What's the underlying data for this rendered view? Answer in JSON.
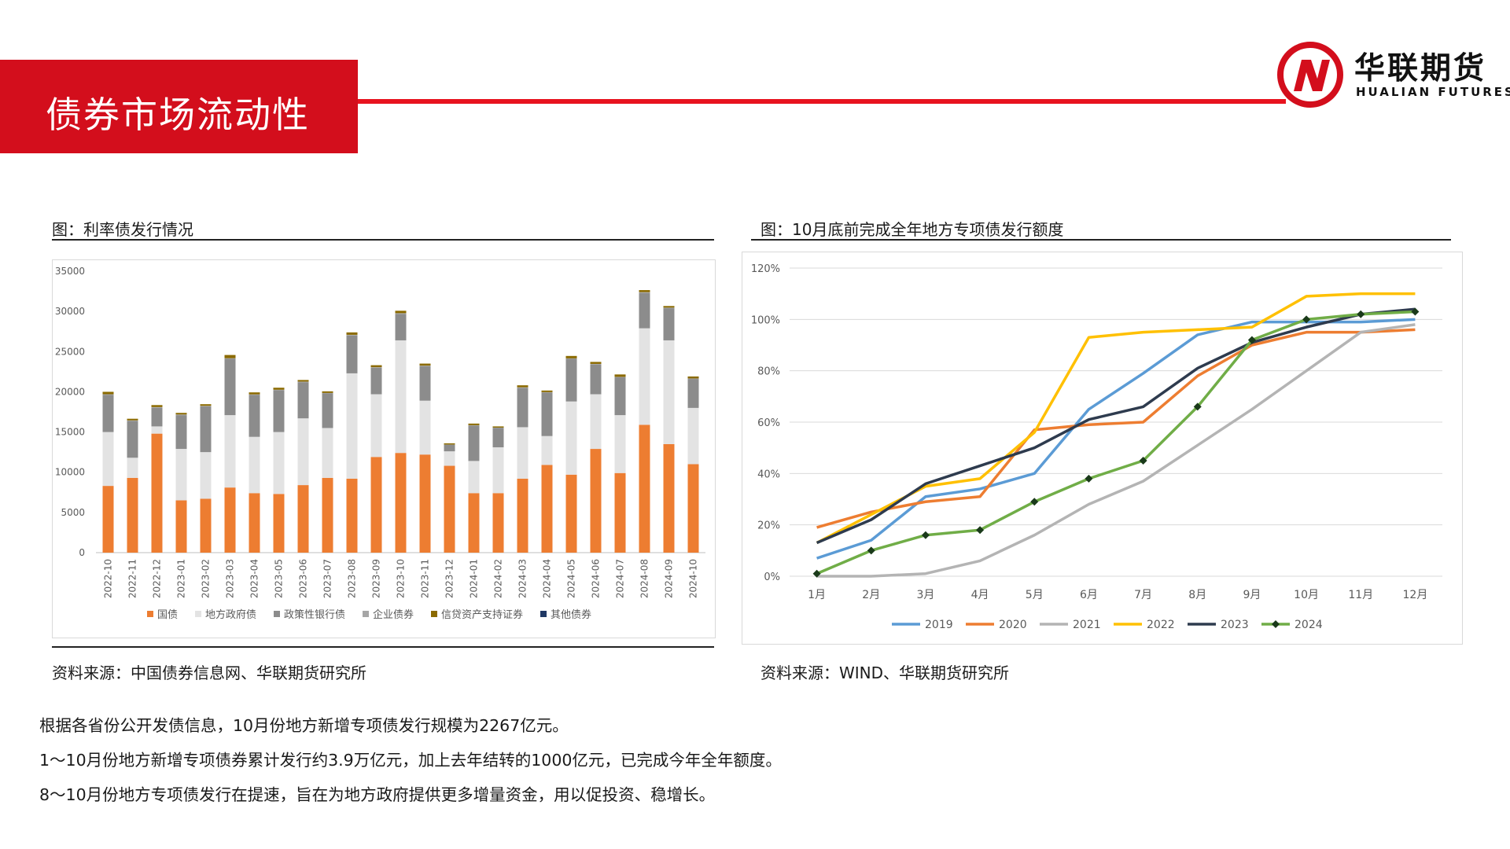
{
  "header": {
    "title": "债券市场流动性",
    "logo_cn": "华联期货",
    "logo_en": "HUALIAN FUTURES"
  },
  "colors": {
    "brand_red": "#d30e1c",
    "rule_red": "#e8131f"
  },
  "left_figure": {
    "caption": "图：利率债发行情况",
    "source": "资料来源：中国债券信息网、华联期货研究所"
  },
  "right_figure": {
    "caption": "图：10月底前完成全年地方专项债发行额度",
    "source": "资料来源：WIND、华联期货研究所"
  },
  "notes": [
    "根据各省份公开发债信息，10月份地方新增专项债发行规模为2267亿元。",
    "1～10月份地方新增专项债券累计发行约3.9万亿元，加上去年结转的1000亿元，已完成今年全年额度。",
    "8～10月份地方专项债发行在提速，旨在为地方政府提供更多增量资金，用以促投资、稳增长。"
  ],
  "chart_data": [
    {
      "type": "bar",
      "stacked": true,
      "title": "",
      "ylim": [
        0,
        35000
      ],
      "yticks": [
        0,
        5000,
        10000,
        15000,
        20000,
        25000,
        30000,
        35000
      ],
      "grid": false,
      "legend_position": "bottom",
      "categories": [
        "2022-10",
        "2022-11",
        "2022-12",
        "2023-01",
        "2023-02",
        "2023-03",
        "2023-04",
        "2023-05",
        "2023-06",
        "2023-07",
        "2023-08",
        "2023-09",
        "2023-10",
        "2023-11",
        "2023-12",
        "2024-01",
        "2024-02",
        "2024-03",
        "2024-04",
        "2024-05",
        "2024-06",
        "2024-07",
        "2024-08",
        "2024-09",
        "2024-10"
      ],
      "series": [
        {
          "name": "国债",
          "color": "#ed7d31",
          "values": [
            8300,
            9300,
            14800,
            6500,
            6700,
            8100,
            7400,
            7300,
            8400,
            9300,
            9200,
            11900,
            12400,
            12200,
            10800,
            7400,
            7400,
            9200,
            10900,
            9700,
            12900,
            9900,
            15900,
            13500,
            11000
          ]
        },
        {
          "name": "地方政府债",
          "color": "#e3e3e3",
          "values": [
            6700,
            2500,
            900,
            6400,
            5800,
            9000,
            7000,
            7700,
            8300,
            6200,
            13100,
            7800,
            14000,
            6700,
            1800,
            4000,
            5700,
            6400,
            3600,
            9100,
            6800,
            7200,
            12000,
            12900,
            7000
          ]
        },
        {
          "name": "政策性银行债",
          "color": "#8c8c8c",
          "values": [
            4600,
            4600,
            2300,
            4200,
            5700,
            7000,
            5200,
            5200,
            4500,
            4300,
            4700,
            3300,
            3300,
            4300,
            800,
            4400,
            2400,
            4900,
            5400,
            5300,
            3700,
            4700,
            4400,
            4000,
            3600
          ]
        },
        {
          "name": "企业债券",
          "color": "#a6a6a6",
          "values": [
            100,
            50,
            100,
            80,
            60,
            80,
            80,
            60,
            70,
            60,
            90,
            60,
            80,
            60,
            40,
            50,
            50,
            60,
            60,
            60,
            70,
            60,
            100,
            70,
            60
          ]
        },
        {
          "name": "信贷资产支持证券",
          "color": "#8b6a00",
          "values": [
            300,
            200,
            250,
            200,
            200,
            400,
            250,
            250,
            200,
            200,
            300,
            250,
            300,
            250,
            150,
            200,
            150,
            250,
            200,
            300,
            250,
            300,
            250,
            200,
            250
          ]
        },
        {
          "name": "其他债券",
          "color": "#1f3864",
          "values": [
            0,
            0,
            0,
            0,
            0,
            0,
            0,
            0,
            0,
            0,
            0,
            0,
            0,
            0,
            0,
            0,
            0,
            0,
            0,
            0,
            0,
            0,
            0,
            0,
            0
          ]
        }
      ]
    },
    {
      "type": "line",
      "title": "",
      "ylim": [
        0,
        1.2
      ],
      "yticks": [
        "0%",
        "20%",
        "40%",
        "60%",
        "80%",
        "100%",
        "120%"
      ],
      "grid": true,
      "legend_position": "bottom",
      "x": [
        "1月",
        "2月",
        "3月",
        "4月",
        "5月",
        "6月",
        "7月",
        "8月",
        "9月",
        "10月",
        "11月",
        "12月"
      ],
      "series": [
        {
          "name": "2019",
          "color": "#5b9bd5",
          "values": [
            0.07,
            0.14,
            0.31,
            0.34,
            0.4,
            0.65,
            0.79,
            0.94,
            0.99,
            0.99,
            0.99,
            1.0
          ]
        },
        {
          "name": "2020",
          "color": "#ed7d31",
          "values": [
            0.19,
            0.25,
            0.29,
            0.31,
            0.57,
            0.59,
            0.6,
            0.78,
            0.9,
            0.95,
            0.95,
            0.96
          ]
        },
        {
          "name": "2021",
          "color": "#b4b4b4",
          "values": [
            0.0,
            0.0,
            0.01,
            0.06,
            0.16,
            0.28,
            0.37,
            0.51,
            0.65,
            0.8,
            0.95,
            0.98
          ]
        },
        {
          "name": "2022",
          "color": "#ffc000",
          "values": [
            0.13,
            0.24,
            0.35,
            0.38,
            0.56,
            0.93,
            0.95,
            0.96,
            0.97,
            1.09,
            1.1,
            1.1
          ]
        },
        {
          "name": "2023",
          "color": "#2e3b4e",
          "values": [
            0.13,
            0.22,
            0.36,
            0.43,
            0.5,
            0.61,
            0.66,
            0.81,
            0.91,
            0.97,
            1.02,
            1.04
          ]
        },
        {
          "name": "2024",
          "color": "#70ad47",
          "marker": "diamond",
          "values": [
            0.01,
            0.1,
            0.16,
            0.18,
            0.29,
            0.38,
            0.45,
            0.66,
            0.92,
            1.0,
            1.02,
            1.03
          ]
        }
      ]
    }
  ]
}
